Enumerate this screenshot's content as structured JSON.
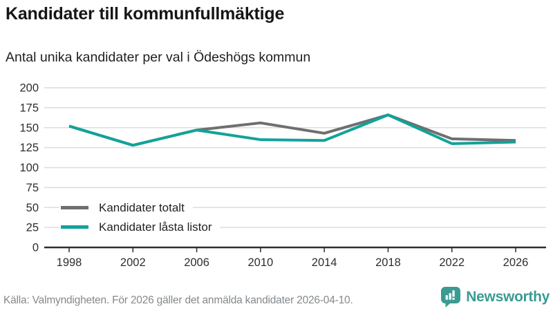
{
  "title": "Kandidater till kommunfullmäktige",
  "subtitle": "Antal unika kandidater per val i Ödeshögs kommun",
  "footer": {
    "source": "Källa: Valmyndigheten. För 2026 gäller det anmälda kandidater 2026-04-10."
  },
  "logo": {
    "name": "Newsworthy",
    "icon": "speech-bubble-bar-chart-icon",
    "color": "#3a9b92"
  },
  "colors": {
    "series_total": "#6f6f6f",
    "series_locked": "#10a39a",
    "grid": "#dcdcdc",
    "axis": "#2e2e2e",
    "text": "#2e2e2e"
  },
  "chart_data": {
    "type": "line",
    "x": [
      1998,
      2002,
      2006,
      2010,
      2014,
      2018,
      2022,
      2026
    ],
    "series": [
      {
        "name": "Kandidater totalt",
        "color": "#6f6f6f",
        "values": [
          152,
          128,
          147,
          156,
          143,
          166,
          136,
          134
        ]
      },
      {
        "name": "Kandidater låsta listor",
        "color": "#10a39a",
        "values": [
          152,
          128,
          147,
          135,
          134,
          166,
          130,
          132
        ]
      }
    ],
    "ylim": [
      0,
      200
    ],
    "ytick_step": 25,
    "yticks": [
      0,
      25,
      50,
      75,
      100,
      125,
      150,
      175,
      200
    ],
    "grid": true,
    "legend_position": "inside-bottom-left"
  }
}
